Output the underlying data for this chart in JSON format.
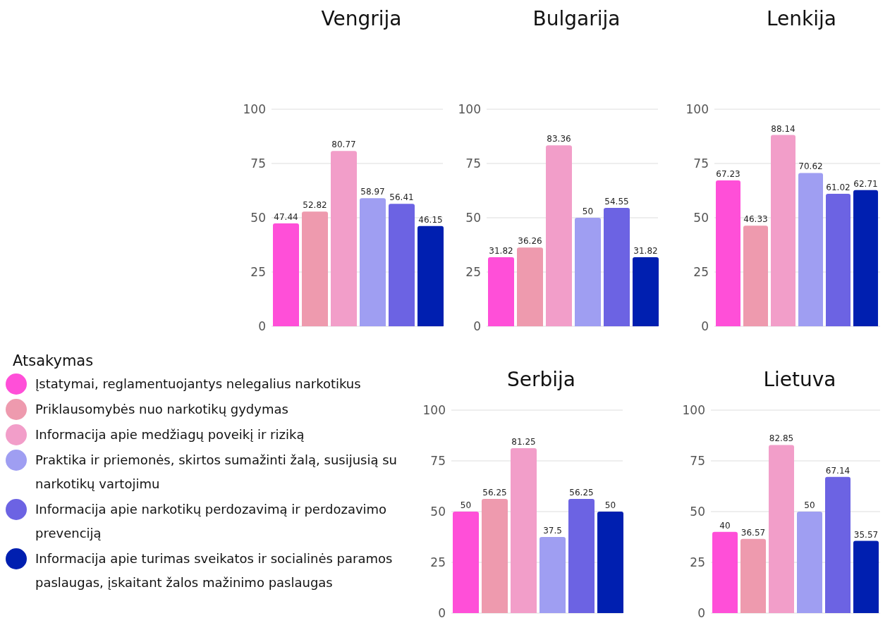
{
  "chart_data": [
    {
      "type": "bar",
      "title": "Vengrija",
      "categories": [
        null
      ],
      "ylim": [
        0,
        100
      ],
      "yticks": [
        0,
        25,
        50,
        75,
        100
      ],
      "grid": "y",
      "tick_labels": "y",
      "data_labels": true,
      "legend": "bottom left",
      "legend_title": "Atsakymas",
      "series": [
        {
          "name": "Įstatymai, reglamentuojantys nelegalius narkotikus",
          "color": "#ff4fd8",
          "values": [
            47.44
          ]
        },
        {
          "name": "Priklausomybės nuo narkotikų gydymas",
          "color": "#ee9aae",
          "values": [
            52.82
          ]
        },
        {
          "name": "Informacija apie medžiagų poveikį ir riziką",
          "color": "#f29ec9",
          "values": [
            80.77
          ]
        },
        {
          "name": "Praktika ir priemonės, skirtos sumažinti žalą, susijusią su narkotikų vartojimu",
          "color": "#9f9ef2",
          "values": [
            58.97
          ]
        },
        {
          "name": "Informacija apie narkotikų perdozavimą ir perdozavimo prevenciją",
          "color": "#6c63e3",
          "values": [
            56.41
          ]
        },
        {
          "name": "Informacija apie turimas sveikatos ir socialinės paramos paslaugas, įskaitant žalos mažinimo paslaugas",
          "color": "#001fb0",
          "values": [
            46.15
          ]
        }
      ]
    },
    {
      "type": "bar",
      "title": "Bulgarija",
      "categories": [
        null
      ],
      "ylim": [
        0,
        100
      ],
      "yticks": [
        0,
        25,
        50,
        75,
        100
      ],
      "grid": "y",
      "tick_labels": "y",
      "data_labels": true,
      "series": [
        {
          "color": "#ff4fd8",
          "values": [
            31.82
          ]
        },
        {
          "color": "#ee9aae",
          "values": [
            36.26
          ]
        },
        {
          "color": "#f29ec9",
          "values": [
            83.36
          ]
        },
        {
          "color": "#9f9ef2",
          "values": [
            50
          ]
        },
        {
          "color": "#6c63e3",
          "values": [
            54.55
          ]
        },
        {
          "color": "#001fb0",
          "values": [
            31.82
          ]
        }
      ]
    },
    {
      "type": "bar",
      "title": "Lenkija",
      "categories": [
        null
      ],
      "ylim": [
        0,
        100
      ],
      "yticks": [
        0,
        25,
        50,
        75,
        100
      ],
      "grid": "y",
      "tick_labels": "y",
      "data_labels": true,
      "series": [
        {
          "color": "#ff4fd8",
          "values": [
            67.23
          ]
        },
        {
          "color": "#ee9aae",
          "values": [
            46.33
          ]
        },
        {
          "color": "#f29ec9",
          "values": [
            88.14
          ]
        },
        {
          "color": "#9f9ef2",
          "values": [
            70.62
          ]
        },
        {
          "color": "#6c63e3",
          "values": [
            61.02
          ]
        },
        {
          "color": "#001fb0",
          "values": [
            62.71
          ]
        }
      ]
    },
    {
      "type": "bar",
      "title": "Serbija",
      "categories": [
        null
      ],
      "ylim": [
        0,
        100
      ],
      "yticks": [
        0,
        25,
        50,
        75,
        100
      ],
      "grid": "y",
      "tick_labels": "y",
      "data_labels": true,
      "series": [
        {
          "color": "#ff4fd8",
          "values": [
            50
          ]
        },
        {
          "color": "#ee9aae",
          "values": [
            56.25
          ]
        },
        {
          "color": "#f29ec9",
          "values": [
            81.25
          ]
        },
        {
          "color": "#9f9ef2",
          "values": [
            37.5
          ]
        },
        {
          "color": "#6c63e3",
          "values": [
            56.25
          ]
        },
        {
          "color": "#001fb0",
          "values": [
            50
          ]
        }
      ]
    },
    {
      "type": "bar",
      "title": "Lietuva",
      "categories": [
        null
      ],
      "ylim": [
        0,
        100
      ],
      "yticks": [
        0,
        25,
        50,
        75,
        100
      ],
      "grid": "y",
      "tick_labels": "y",
      "data_labels": true,
      "series": [
        {
          "color": "#ff4fd8",
          "values": [
            40
          ]
        },
        {
          "color": "#ee9aae",
          "values": [
            36.57
          ]
        },
        {
          "color": "#f29ec9",
          "values": [
            82.85
          ]
        },
        {
          "color": "#9f9ef2",
          "values": [
            50
          ]
        },
        {
          "color": "#6c63e3",
          "values": [
            67.14
          ]
        },
        {
          "color": "#001fb0",
          "values": [
            35.57
          ]
        }
      ]
    }
  ]
}
